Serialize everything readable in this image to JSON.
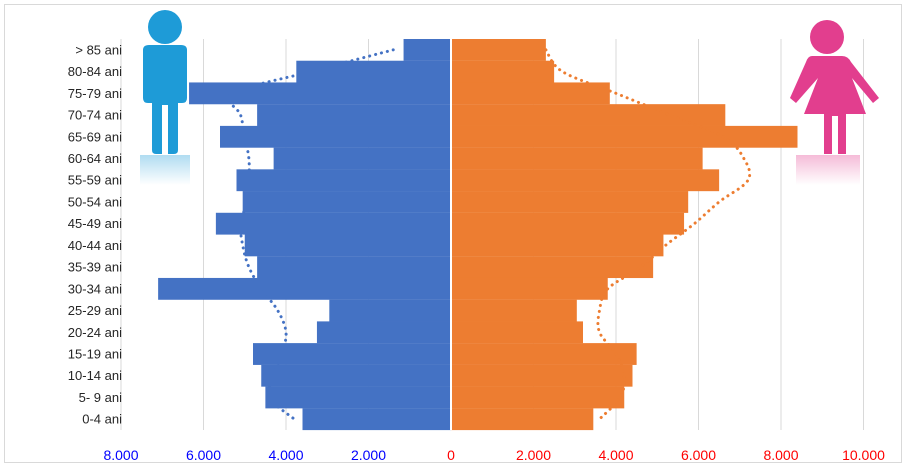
{
  "chart_data": {
    "type": "bar",
    "orientation": "horizontal-population-pyramid",
    "categories": [
      "> 85 ani",
      "80-84 ani",
      "75-79 ani",
      "70-74 ani",
      "65-69 ani",
      "60-64 ani",
      "55-59 ani",
      "50-54 ani",
      "45-49 ani",
      "40-44 ani",
      "35-39 ani",
      "30-34 ani",
      "25-29 ani",
      "20-24 ani",
      "15-19 ani",
      "10-14 ani",
      "5- 9 ani",
      "0-4 ani"
    ],
    "series": [
      {
        "color": "#4472C4",
        "side": "left",
        "values": [
          1150,
          3750,
          6350,
          4700,
          5600,
          4300,
          5200,
          5050,
          5700,
          5000,
          4700,
          7100,
          2950,
          3250,
          4800,
          4600,
          4500,
          3600
        ],
        "trend": [
          1400,
          3400,
          5300,
          5100,
          5000,
          4900,
          4900,
          4950,
          5100,
          5050,
          4900,
          4600,
          4200,
          4000,
          4100,
          4300,
          4400,
          3800
        ]
      },
      {
        "color": "#ED7D31",
        "side": "right",
        "values": [
          2300,
          2500,
          3850,
          6650,
          8400,
          6100,
          6500,
          5750,
          5650,
          5150,
          4900,
          3800,
          3050,
          3200,
          4500,
          4400,
          4200,
          3450
        ]
      },
      {
        "color": "#ED7D31",
        "style": "dotted-trend",
        "values": [
          2300,
          2700,
          4000,
          5300,
          6600,
          7100,
          7200,
          6500,
          5900,
          5200,
          4600,
          3800,
          3600,
          3600,
          4000,
          4200,
          4100,
          3600
        ]
      }
    ],
    "x_ticks_left": [
      "8.000",
      "6.000",
      "4.000",
      "2.000"
    ],
    "x_ticks_right": [
      "0",
      "2.000",
      "4.000",
      "6.000",
      "8.000",
      "10.000"
    ],
    "xlim_left": [
      0,
      8000
    ],
    "xlim_right": [
      0,
      10000
    ],
    "xlabel": "",
    "ylabel": "",
    "title": "",
    "grid": "vertical",
    "colors": {
      "left_axis_labels": "#0000FF",
      "right_axis_labels": "#FF0000",
      "male_icon": "#1E9BD7",
      "female_icon": "#E23E8E",
      "grid": "#D9D9D9"
    },
    "icons": [
      "male-figure-icon",
      "female-figure-icon"
    ]
  }
}
